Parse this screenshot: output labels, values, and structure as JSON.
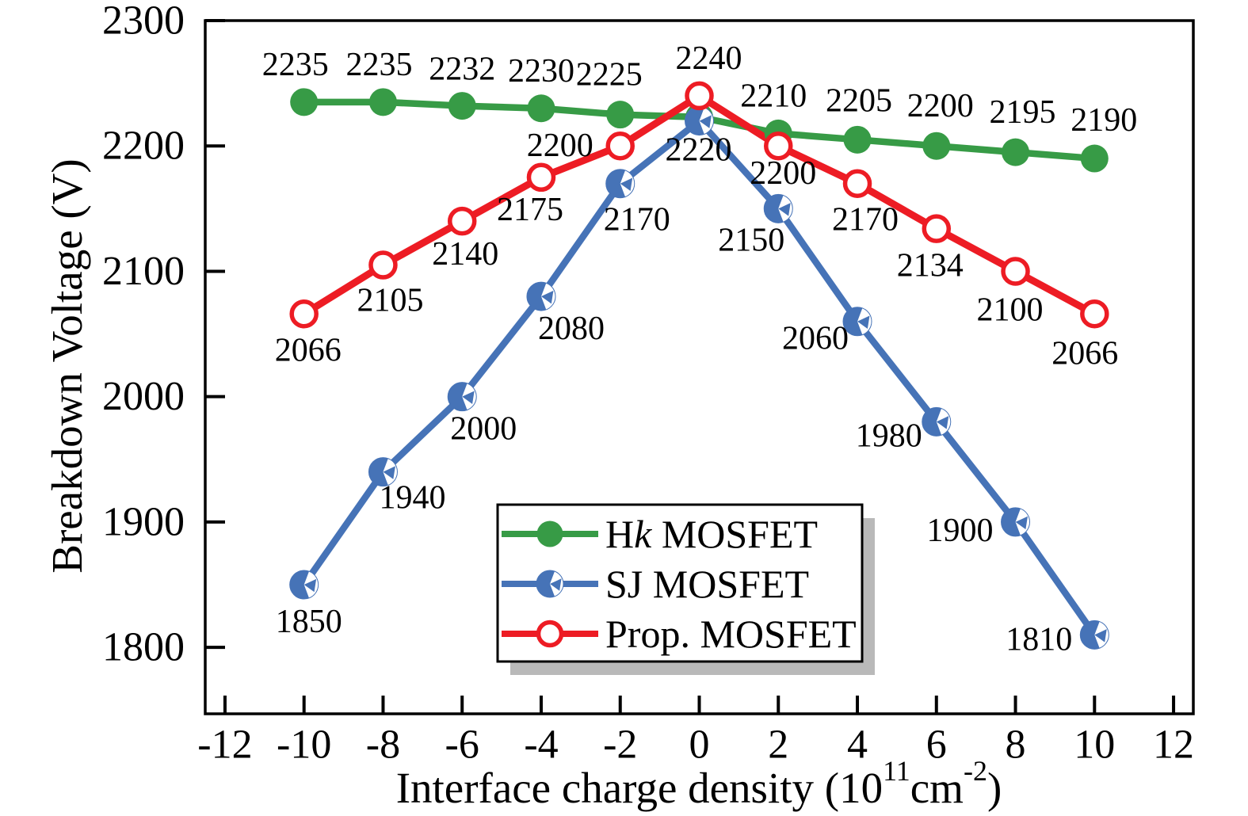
{
  "figure": {
    "background": "#ffffff"
  },
  "chart_data": {
    "type": "line",
    "title": "",
    "grid": false,
    "x_axis": {
      "label_parts": [
        {
          "t": "Interface charge density (10"
        },
        {
          "t": "11",
          "sup": true
        },
        {
          "t": "cm"
        },
        {
          "t": "-2",
          "sup": true
        },
        {
          "t": ")"
        }
      ],
      "ticks": [
        -12,
        -10,
        -8,
        -6,
        -4,
        -2,
        0,
        2,
        4,
        6,
        8,
        10,
        12
      ],
      "range": [
        -12.5,
        12.5
      ]
    },
    "y_axis": {
      "label": "Breakdown Voltage (V)",
      "ticks": [
        1800,
        1900,
        2000,
        2100,
        2200,
        2300
      ],
      "range": [
        1747,
        2300
      ]
    },
    "x_values": [
      -10,
      -8,
      -6,
      -4,
      -2,
      0,
      2,
      4,
      6,
      8,
      10
    ],
    "series": [
      {
        "name": "Hk MOSFET",
        "color": "#379B46",
        "marker": "circle-filled",
        "line_width": 8.5,
        "values": [
          2235,
          2235,
          2232,
          2230,
          2225,
          2223,
          2210,
          2205,
          2200,
          2195,
          2190
        ],
        "labels": [
          "2235",
          "2235",
          "2232",
          "2230",
          "2225",
          "",
          "2210",
          "2205",
          "2200",
          "2195",
          "2190"
        ],
        "label_dx": [
          -11,
          -5,
          0,
          0,
          -14,
          0,
          -6,
          2,
          5,
          9,
          12
        ],
        "label_dy": [
          -47,
          -47,
          -46,
          -47,
          -50,
          0,
          -47,
          -49,
          -50,
          -50,
          -48
        ]
      },
      {
        "name": "SJ MOSFET",
        "color": "#4673B7",
        "marker": "circle-half",
        "line_width": 8.5,
        "values": [
          1850,
          1940,
          2000,
          2080,
          2170,
          2220,
          2150,
          2060,
          1980,
          1900,
          1810
        ],
        "labels": [
          "1850",
          "1940",
          "2000",
          "2080",
          "2170",
          "2220",
          "2150",
          "2060",
          "1980",
          "1900",
          "1810"
        ],
        "label_dx": [
          6,
          37,
          27,
          38,
          21,
          -1,
          -34,
          -53,
          -60,
          -70,
          -70
        ],
        "label_dy": [
          47,
          33,
          41,
          41,
          46,
          37,
          40,
          22,
          18,
          11,
          6
        ]
      },
      {
        "name": "Prop. MOSFET",
        "color": "#ED1C24",
        "marker": "circle-open",
        "line_width": 9,
        "values": [
          2066,
          2105,
          2140,
          2175,
          2200,
          2240,
          2200,
          2170,
          2134,
          2100,
          2066
        ],
        "labels": [
          "2066",
          "2105",
          "2140",
          "2175",
          "2200",
          "2240",
          "2200",
          "2170",
          "2134",
          "2100",
          "2066"
        ],
        "label_dx": [
          5,
          9,
          4,
          -14,
          -76,
          12,
          6,
          10,
          -8,
          -7,
          -12
        ],
        "label_dy": [
          46,
          45,
          42,
          41,
          0,
          -47,
          35,
          46,
          47,
          49,
          50
        ]
      }
    ],
    "legend": {
      "position": "bottom-center",
      "items": [
        {
          "label_parts": [
            {
              "t": "H"
            },
            {
              "t": "k",
              "italic": true
            },
            {
              "t": " MOSFET"
            }
          ],
          "series": 0
        },
        {
          "label_parts": [
            {
              "t": "SJ MOSFET"
            }
          ],
          "series": 1
        },
        {
          "label_parts": [
            {
              "t": "Prop. MOSFET"
            }
          ],
          "series": 2
        }
      ]
    }
  }
}
